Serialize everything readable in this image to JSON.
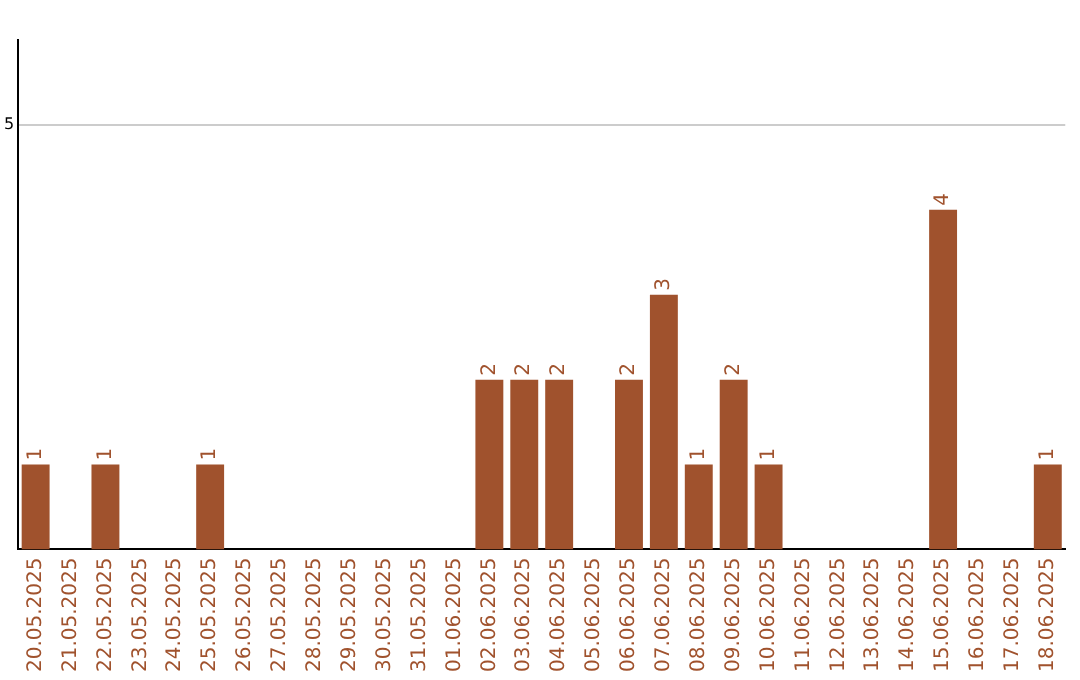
{
  "chart_data": {
    "type": "bar",
    "categories": [
      "20.05.2025",
      "21.05.2025",
      "22.05.2025",
      "23.05.2025",
      "24.05.2025",
      "25.05.2025",
      "26.05.2025",
      "27.05.2025",
      "28.05.2025",
      "29.05.2025",
      "30.05.2025",
      "31.05.2025",
      "01.06.2025",
      "02.06.2025",
      "03.06.2025",
      "04.06.2025",
      "05.06.2025",
      "06.06.2025",
      "07.06.2025",
      "08.06.2025",
      "09.06.2025",
      "10.06.2025",
      "11.06.2025",
      "12.06.2025",
      "13.06.2025",
      "14.06.2025",
      "15.06.2025",
      "16.06.2025",
      "17.06.2025",
      "18.06.2025"
    ],
    "values": [
      1,
      0,
      1,
      0,
      0,
      1,
      0,
      0,
      0,
      0,
      0,
      0,
      0,
      2,
      2,
      2,
      0,
      2,
      3,
      1,
      2,
      1,
      0,
      0,
      0,
      0,
      4,
      0,
      0,
      1
    ],
    "value_labels": [
      "1",
      null,
      "1",
      null,
      null,
      "1",
      null,
      null,
      null,
      null,
      null,
      null,
      null,
      "2",
      "2",
      "2",
      null,
      "2",
      "3",
      "1",
      "2",
      "1",
      null,
      null,
      null,
      null,
      "4",
      null,
      null,
      "1"
    ],
    "color": "#a0522d",
    "ylim": [
      0,
      6
    ],
    "yticks": [
      5
    ],
    "grid": "y",
    "legend": false
  }
}
